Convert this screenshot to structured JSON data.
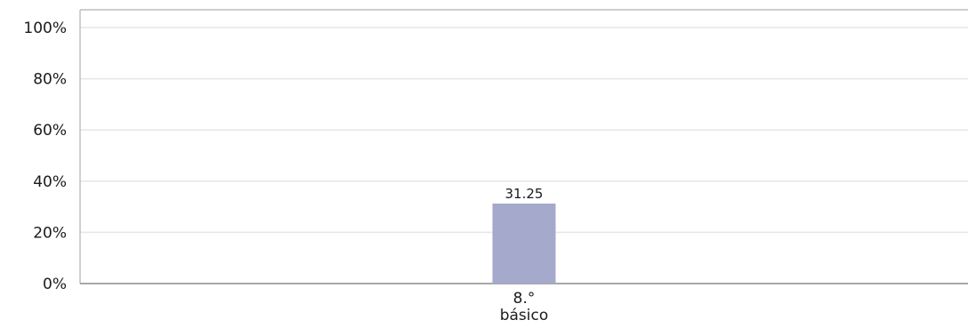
{
  "chart_data": {
    "type": "bar",
    "categories": [
      [
        "8.°",
        "básico"
      ]
    ],
    "values": [
      31.25
    ],
    "data_labels": [
      "31.25"
    ],
    "title": "",
    "xlabel": "",
    "ylabel": "",
    "ylim": [
      0,
      100
    ],
    "yticks": [
      0,
      20,
      40,
      60,
      80,
      100
    ],
    "ytick_labels": [
      "0%",
      "20%",
      "40%",
      "60%",
      "80%",
      "100%"
    ],
    "grid": true,
    "legend": "none",
    "colors": {
      "bar": "#a5a9cc",
      "gridline": "#e6e6e6",
      "axis": "#8c8c8c",
      "frame": "#b0b0b0",
      "text": "#1a1a1a"
    }
  }
}
